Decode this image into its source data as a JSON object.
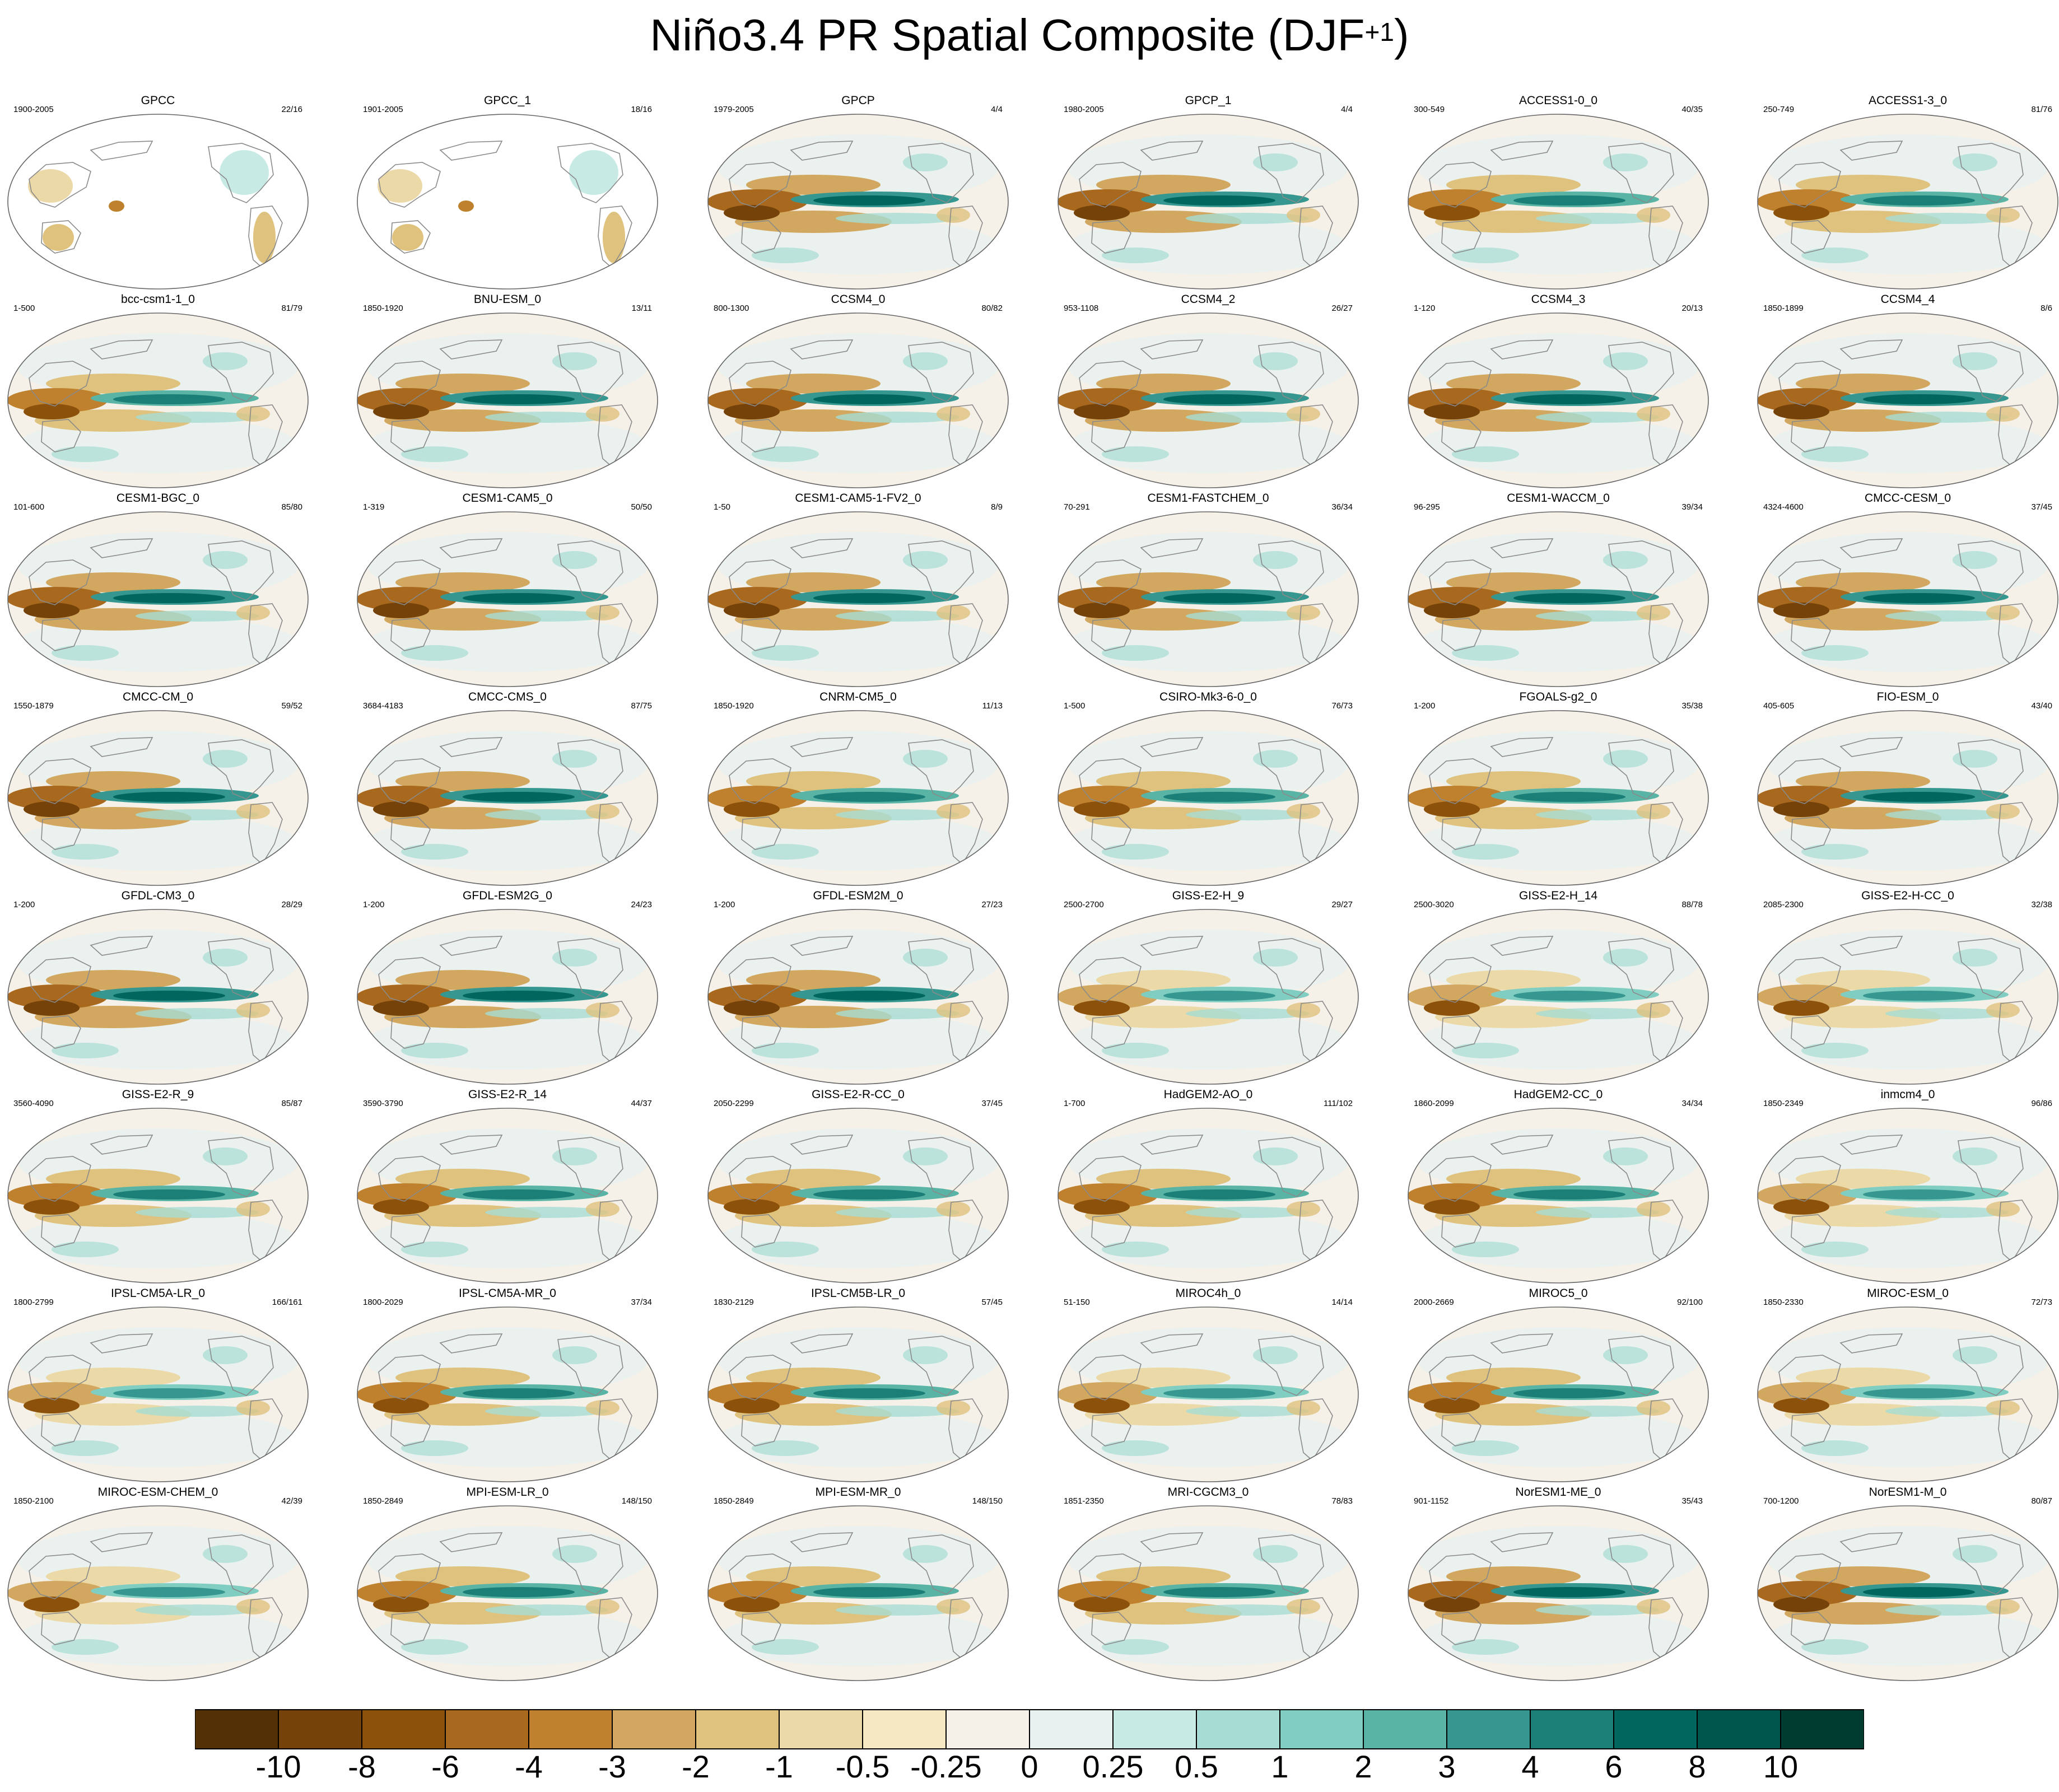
{
  "title_main": "Niño3.4 PR Spatial Composite (DJF",
  "title_sup": "+1",
  "title_end": ")",
  "chart_data": {
    "type": "heatmap",
    "title": "Niño3.4 PR Spatial Composite (DJF+1)",
    "layout": "8 rows x 6 columns of global map panels",
    "panels": [
      {
        "name": "GPCC",
        "years": "1900-2005",
        "count": "22/16",
        "style": "land"
      },
      {
        "name": "GPCC_1",
        "years": "1901-2005",
        "count": "18/16",
        "style": "land"
      },
      {
        "name": "GPCP",
        "years": "1979-2005",
        "count": "4/4",
        "style": "strong"
      },
      {
        "name": "GPCP_1",
        "years": "1980-2005",
        "count": "4/4",
        "style": "strong"
      },
      {
        "name": "ACCESS1-0_0",
        "years": "300-549",
        "count": "40/35",
        "style": "mid"
      },
      {
        "name": "ACCESS1-3_0",
        "years": "250-749",
        "count": "81/76",
        "style": "mid"
      },
      {
        "name": "bcc-csm1-1_0",
        "years": "1-500",
        "count": "81/79",
        "style": "mid"
      },
      {
        "name": "BNU-ESM_0",
        "years": "1850-1920",
        "count": "13/11",
        "style": "strong"
      },
      {
        "name": "CCSM4_0",
        "years": "800-1300",
        "count": "80/82",
        "style": "strong"
      },
      {
        "name": "CCSM4_2",
        "years": "953-1108",
        "count": "26/27",
        "style": "strong"
      },
      {
        "name": "CCSM4_3",
        "years": "1-120",
        "count": "20/13",
        "style": "strong"
      },
      {
        "name": "CCSM4_4",
        "years": "1850-1899",
        "count": "8/6",
        "style": "strong"
      },
      {
        "name": "CESM1-BGC_0",
        "years": "101-600",
        "count": "85/80",
        "style": "strong"
      },
      {
        "name": "CESM1-CAM5_0",
        "years": "1-319",
        "count": "50/50",
        "style": "strong"
      },
      {
        "name": "CESM1-CAM5-1-FV2_0",
        "years": "1-50",
        "count": "8/9",
        "style": "strong"
      },
      {
        "name": "CESM1-FASTCHEM_0",
        "years": "70-291",
        "count": "36/34",
        "style": "strong"
      },
      {
        "name": "CESM1-WACCM_0",
        "years": "96-295",
        "count": "39/34",
        "style": "strong"
      },
      {
        "name": "CMCC-CESM_0",
        "years": "4324-4600",
        "count": "37/45",
        "style": "strong"
      },
      {
        "name": "CMCC-CM_0",
        "years": "1550-1879",
        "count": "59/52",
        "style": "strong"
      },
      {
        "name": "CMCC-CMS_0",
        "years": "3684-4183",
        "count": "87/75",
        "style": "strong"
      },
      {
        "name": "CNRM-CM5_0",
        "years": "1850-1920",
        "count": "11/13",
        "style": "mid"
      },
      {
        "name": "CSIRO-Mk3-6-0_0",
        "years": "1-500",
        "count": "76/73",
        "style": "mid"
      },
      {
        "name": "FGOALS-g2_0",
        "years": "1-200",
        "count": "35/38",
        "style": "mid"
      },
      {
        "name": "FIO-ESM_0",
        "years": "405-605",
        "count": "43/40",
        "style": "strong"
      },
      {
        "name": "GFDL-CM3_0",
        "years": "1-200",
        "count": "28/29",
        "style": "strong"
      },
      {
        "name": "GFDL-ESM2G_0",
        "years": "1-200",
        "count": "24/23",
        "style": "strong"
      },
      {
        "name": "GFDL-ESM2M_0",
        "years": "1-200",
        "count": "27/23",
        "style": "strong"
      },
      {
        "name": "GISS-E2-H_9",
        "years": "2500-2700",
        "count": "29/27",
        "style": "weak"
      },
      {
        "name": "GISS-E2-H_14",
        "years": "2500-3020",
        "count": "88/78",
        "style": "weak"
      },
      {
        "name": "GISS-E2-H-CC_0",
        "years": "2085-2300",
        "count": "32/38",
        "style": "weak"
      },
      {
        "name": "GISS-E2-R_9",
        "years": "3560-4090",
        "count": "85/87",
        "style": "mid"
      },
      {
        "name": "GISS-E2-R_14",
        "years": "3590-3790",
        "count": "44/37",
        "style": "mid"
      },
      {
        "name": "GISS-E2-R-CC_0",
        "years": "2050-2299",
        "count": "37/45",
        "style": "mid"
      },
      {
        "name": "HadGEM2-AO_0",
        "years": "1-700",
        "count": "111/102",
        "style": "mid"
      },
      {
        "name": "HadGEM2-CC_0",
        "years": "1860-2099",
        "count": "34/34",
        "style": "mid"
      },
      {
        "name": "inmcm4_0",
        "years": "1850-2349",
        "count": "96/86",
        "style": "weak"
      },
      {
        "name": "IPSL-CM5A-LR_0",
        "years": "1800-2799",
        "count": "166/161",
        "style": "weak"
      },
      {
        "name": "IPSL-CM5A-MR_0",
        "years": "1800-2029",
        "count": "37/34",
        "style": "mid"
      },
      {
        "name": "IPSL-CM5B-LR_0",
        "years": "1830-2129",
        "count": "57/45",
        "style": "mid"
      },
      {
        "name": "MIROC4h_0",
        "years": "51-150",
        "count": "14/14",
        "style": "weak"
      },
      {
        "name": "MIROC5_0",
        "years": "2000-2669",
        "count": "92/100",
        "style": "mid"
      },
      {
        "name": "MIROC-ESM_0",
        "years": "1850-2330",
        "count": "72/73",
        "style": "weak"
      },
      {
        "name": "MIROC-ESM-CHEM_0",
        "years": "1850-2100",
        "count": "42/39",
        "style": "weak"
      },
      {
        "name": "MPI-ESM-LR_0",
        "years": "1850-2849",
        "count": "148/150",
        "style": "mid"
      },
      {
        "name": "MPI-ESM-MR_0",
        "years": "1850-2849",
        "count": "148/150",
        "style": "mid"
      },
      {
        "name": "MRI-CGCM3_0",
        "years": "1851-2350",
        "count": "78/83",
        "style": "mid"
      },
      {
        "name": "NorESM1-ME_0",
        "years": "901-1152",
        "count": "35/43",
        "style": "strong"
      },
      {
        "name": "NorESM1-M_0",
        "years": "700-1200",
        "count": "80/87",
        "style": "strong"
      }
    ],
    "colorbar": {
      "levels": [
        "-10",
        "-8",
        "-6",
        "-4",
        "-3",
        "-2",
        "-1",
        "-0.5",
        "-0.25",
        "0",
        "0.25",
        "0.5",
        "1",
        "2",
        "3",
        "4",
        "6",
        "8",
        "10"
      ],
      "colors": [
        "#543005",
        "#75420a",
        "#8c510a",
        "#a8691e",
        "#bf812d",
        "#d2a860",
        "#dfc27d",
        "#ecd9a8",
        "#f6e8c3",
        "#f5f1e8",
        "#e8f1ef",
        "#c7eae5",
        "#a6dcd3",
        "#80cdc1",
        "#5ab4a6",
        "#35978f",
        "#1c7f77",
        "#01665e",
        "#00564d",
        "#003c30"
      ]
    }
  }
}
